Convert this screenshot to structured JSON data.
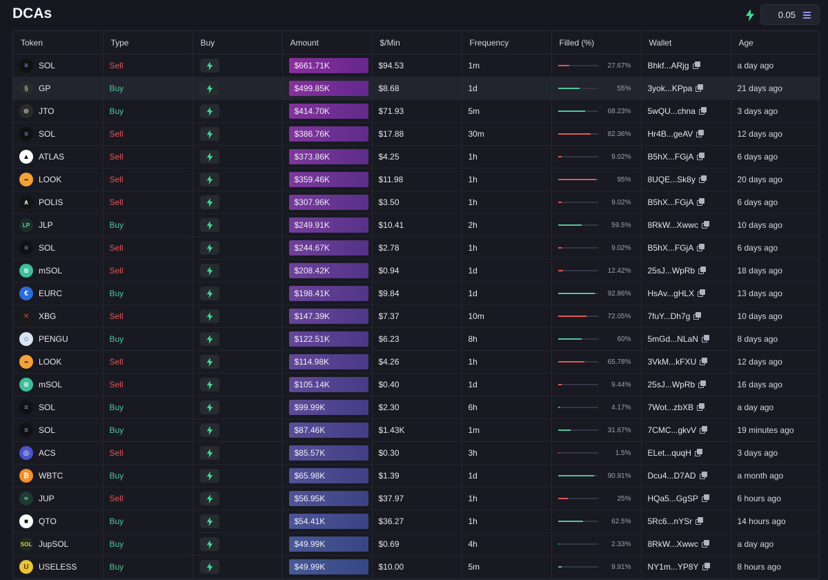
{
  "header": {
    "title": "DCAs",
    "fee_value": "0.05",
    "fee_icon": "solana-icon",
    "bolt_icon": "bolt-icon"
  },
  "columns": [
    "Token",
    "Type",
    "Buy",
    "Amount",
    "$/Min",
    "Frequency",
    "Filled (%)",
    "Wallet",
    "Age"
  ],
  "colors": {
    "sell": "#e5575a",
    "buy": "#52c79a",
    "amount_top": "#8a2f9c",
    "amount_bottom": "#2f3a7a"
  },
  "rows": [
    {
      "token": "SOL",
      "icon": "solana-icon",
      "type": "Sell",
      "amount": "$661.71K",
      "per_min": "$94.53",
      "frequency": "1m",
      "filled_pct": "27.67%",
      "filled": 0.2767,
      "wallet": "Bhkf...ARjg",
      "age": "a day ago"
    },
    {
      "token": "GP",
      "icon": "gp-icon",
      "type": "Buy",
      "amount": "$499.85K",
      "per_min": "$8.68",
      "frequency": "1d",
      "filled_pct": "55%",
      "filled": 0.55,
      "wallet": "3yok...KPpa",
      "age": "21 days ago"
    },
    {
      "token": "JTO",
      "icon": "jto-icon",
      "type": "Buy",
      "amount": "$414.70K",
      "per_min": "$71.93",
      "frequency": "5m",
      "filled_pct": "68.23%",
      "filled": 0.6823,
      "wallet": "5wQU...chna",
      "age": "3 days ago"
    },
    {
      "token": "SOL",
      "icon": "solana-icon",
      "type": "Sell",
      "amount": "$386.76K",
      "per_min": "$17.88",
      "frequency": "30m",
      "filled_pct": "82.36%",
      "filled": 0.8236,
      "wallet": "Hr4B...geAV",
      "age": "12 days ago"
    },
    {
      "token": "ATLAS",
      "icon": "atlas-icon",
      "type": "Sell",
      "amount": "$373.86K",
      "per_min": "$4.25",
      "frequency": "1h",
      "filled_pct": "9.02%",
      "filled": 0.0902,
      "wallet": "B5hX...FGjA",
      "age": "6 days ago"
    },
    {
      "token": "LOOK",
      "icon": "look-icon",
      "type": "Sell",
      "amount": "$359.46K",
      "per_min": "$11.98",
      "frequency": "1h",
      "filled_pct": "95%",
      "filled": 0.95,
      "wallet": "8UQE...Sk8y",
      "age": "20 days ago"
    },
    {
      "token": "POLIS",
      "icon": "polis-icon",
      "type": "Sell",
      "amount": "$307.96K",
      "per_min": "$3.50",
      "frequency": "1h",
      "filled_pct": "9.02%",
      "filled": 0.0902,
      "wallet": "B5hX...FGjA",
      "age": "6 days ago"
    },
    {
      "token": "JLP",
      "icon": "jlp-icon",
      "type": "Buy",
      "amount": "$249.91K",
      "per_min": "$10.41",
      "frequency": "2h",
      "filled_pct": "59.5%",
      "filled": 0.595,
      "wallet": "8RkW...Xwwc",
      "age": "10 days ago"
    },
    {
      "token": "SOL",
      "icon": "solana-icon",
      "type": "Sell",
      "amount": "$244.67K",
      "per_min": "$2.78",
      "frequency": "1h",
      "filled_pct": "9.02%",
      "filled": 0.0902,
      "wallet": "B5hX...FGjA",
      "age": "6 days ago"
    },
    {
      "token": "mSOL",
      "icon": "msol-icon",
      "type": "Sell",
      "amount": "$208.42K",
      "per_min": "$0.94",
      "frequency": "1d",
      "filled_pct": "12.42%",
      "filled": 0.1242,
      "wallet": "25sJ...WpRb",
      "age": "18 days ago"
    },
    {
      "token": "EURC",
      "icon": "eurc-icon",
      "type": "Buy",
      "amount": "$198.41K",
      "per_min": "$9.84",
      "frequency": "1d",
      "filled_pct": "92.86%",
      "filled": 0.9286,
      "wallet": "HsAv...gHLX",
      "age": "13 days ago"
    },
    {
      "token": "XBG",
      "icon": "xbg-icon",
      "type": "Sell",
      "amount": "$147.39K",
      "per_min": "$7.37",
      "frequency": "10m",
      "filled_pct": "72.05%",
      "filled": 0.7205,
      "wallet": "7fuY...Dh7g",
      "age": "10 days ago"
    },
    {
      "token": "PENGU",
      "icon": "pengu-icon",
      "type": "Buy",
      "amount": "$122.51K",
      "per_min": "$6.23",
      "frequency": "8h",
      "filled_pct": "60%",
      "filled": 0.6,
      "wallet": "5mGd...NLaN",
      "age": "8 days ago"
    },
    {
      "token": "LOOK",
      "icon": "look-icon",
      "type": "Sell",
      "amount": "$114.98K",
      "per_min": "$4.26",
      "frequency": "1h",
      "filled_pct": "65.78%",
      "filled": 0.6578,
      "wallet": "3VkM...kFXU",
      "age": "12 days ago"
    },
    {
      "token": "mSOL",
      "icon": "msol-icon",
      "type": "Sell",
      "amount": "$105.14K",
      "per_min": "$0.40",
      "frequency": "1d",
      "filled_pct": "9.44%",
      "filled": 0.0944,
      "wallet": "25sJ...WpRb",
      "age": "16 days ago"
    },
    {
      "token": "SOL",
      "icon": "solana-icon",
      "type": "Buy",
      "amount": "$99.99K",
      "per_min": "$2.30",
      "frequency": "6h",
      "filled_pct": "4.17%",
      "filled": 0.0417,
      "wallet": "7Wot...zbXB",
      "age": "a day ago"
    },
    {
      "token": "SOL",
      "icon": "solana-icon",
      "type": "Buy",
      "amount": "$87.46K",
      "per_min": "$1.43K",
      "frequency": "1m",
      "filled_pct": "31.67%",
      "filled": 0.3167,
      "wallet": "7CMC...gkvV",
      "age": "19 minutes ago"
    },
    {
      "token": "ACS",
      "icon": "acs-icon",
      "type": "Sell",
      "amount": "$85.57K",
      "per_min": "$0.30",
      "frequency": "3h",
      "filled_pct": "1.5%",
      "filled": 0.015,
      "wallet": "ELet...quqH",
      "age": "3 days ago"
    },
    {
      "token": "WBTC",
      "icon": "wbtc-icon",
      "type": "Buy",
      "amount": "$65.98K",
      "per_min": "$1.39",
      "frequency": "1d",
      "filled_pct": "90.91%",
      "filled": 0.9091,
      "wallet": "Dcu4...D7AD",
      "age": "a month ago"
    },
    {
      "token": "JUP",
      "icon": "jup-icon",
      "type": "Sell",
      "amount": "$56.95K",
      "per_min": "$37.97",
      "frequency": "1h",
      "filled_pct": "25%",
      "filled": 0.25,
      "wallet": "HQa5...GgSP",
      "age": "6 hours ago"
    },
    {
      "token": "QTO",
      "icon": "qto-icon",
      "type": "Buy",
      "amount": "$54.41K",
      "per_min": "$36.27",
      "frequency": "1h",
      "filled_pct": "62.5%",
      "filled": 0.625,
      "wallet": "5Rc6...nYSr",
      "age": "14 hours ago"
    },
    {
      "token": "JupSOL",
      "icon": "jupsol-icon",
      "type": "Buy",
      "amount": "$49.99K",
      "per_min": "$0.69",
      "frequency": "4h",
      "filled_pct": "2.33%",
      "filled": 0.0233,
      "wallet": "8RkW...Xwwc",
      "age": "a day ago"
    },
    {
      "token": "USELESS",
      "icon": "useless-icon",
      "type": "Buy",
      "amount": "$49.99K",
      "per_min": "$10.00",
      "frequency": "5m",
      "filled_pct": "9.91%",
      "filled": 0.0991,
      "wallet": "NY1m...YP8Y",
      "age": "8 hours ago"
    }
  ]
}
